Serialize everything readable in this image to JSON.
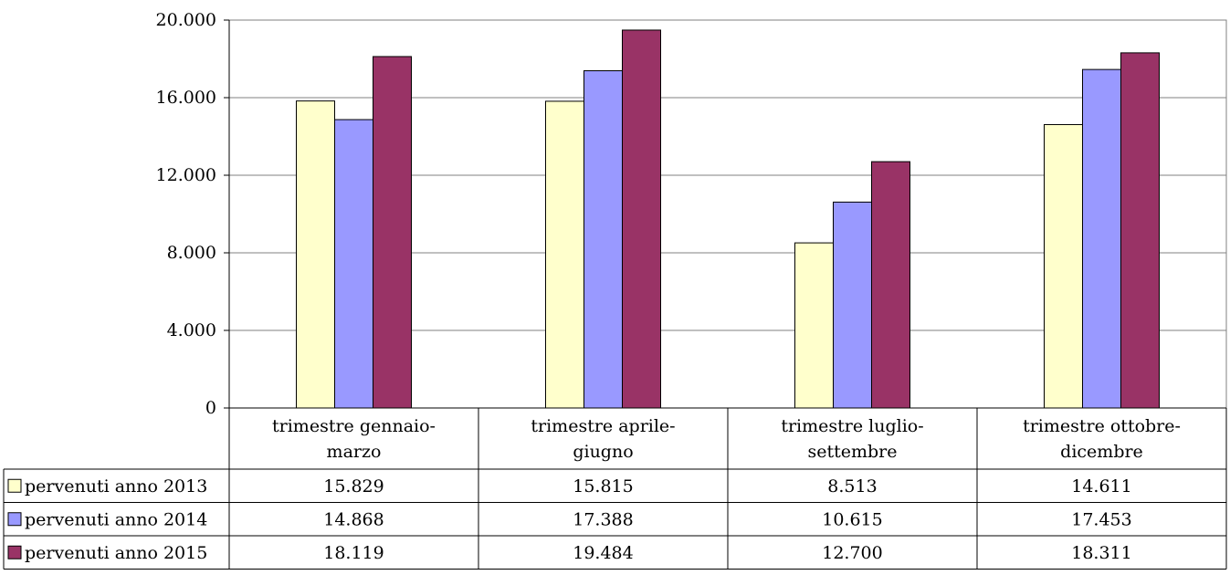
{
  "chart_data": {
    "type": "bar",
    "title": "",
    "xlabel": "",
    "ylabel": "",
    "ylim": [
      0,
      20000
    ],
    "y_ticks": [
      0,
      4000,
      8000,
      12000,
      16000,
      20000
    ],
    "y_tick_labels": [
      "0",
      "4.000",
      "8.000",
      "12.000",
      "16.000",
      "20.000"
    ],
    "grid": true,
    "legend_placement": "data-table-left",
    "categories": [
      [
        "trimestre gennaio-",
        "marzo"
      ],
      [
        "trimestre aprile-",
        "giugno"
      ],
      [
        "trimestre luglio-",
        "settembre"
      ],
      [
        "trimestre ottobre-",
        "dicembre"
      ]
    ],
    "series": [
      {
        "name": "pervenuti anno 2013",
        "color": "#FFFFCC",
        "values": [
          15829,
          15815,
          8513,
          14611
        ],
        "value_labels": [
          "15.829",
          "15.815",
          "8.513",
          "14.611"
        ]
      },
      {
        "name": "pervenuti anno 2014",
        "color": "#9999FF",
        "values": [
          14868,
          17388,
          10615,
          17453
        ],
        "value_labels": [
          "14.868",
          "17.388",
          "10.615",
          "17.453"
        ]
      },
      {
        "name": "pervenuti anno 2015",
        "color": "#993366",
        "values": [
          18119,
          19484,
          12700,
          18311
        ],
        "value_labels": [
          "18.119",
          "19.484",
          "12.700",
          "18.311"
        ]
      }
    ]
  }
}
